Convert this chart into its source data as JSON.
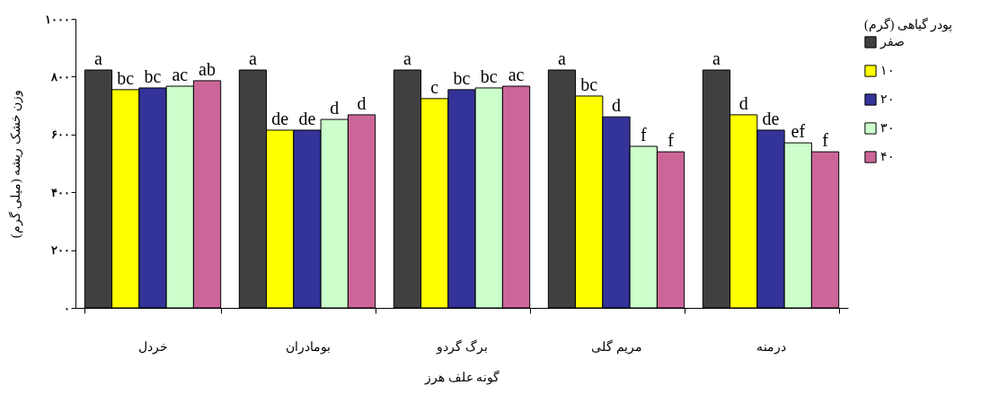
{
  "chart_data": {
    "type": "bar",
    "xlabel": "گونه علف هرز",
    "ylabel": "وزن خشک ریشه (میلی گرم)",
    "legend_title": "پودر گیاهی (گرم)",
    "legend": "right",
    "categories": [
      "خردل",
      "بومادران",
      "برگ گردو",
      "مریم گلی",
      "درمنه"
    ],
    "ylim": [
      0,
      1000
    ],
    "yticks": [
      {
        "value": 0,
        "label": "۰"
      },
      {
        "value": 200,
        "label": "۲۰۰"
      },
      {
        "value": 400,
        "label": "۴۰۰"
      },
      {
        "value": 600,
        "label": "۶۰۰"
      },
      {
        "value": 800,
        "label": "۸۰۰"
      },
      {
        "value": 1000,
        "label": "۱۰۰۰"
      }
    ],
    "series": [
      {
        "name": "صفر",
        "color": "#404040",
        "values": [
          823,
          823,
          823,
          823,
          823
        ],
        "value_labels": [
          "a",
          "a",
          "a",
          "a",
          "a"
        ]
      },
      {
        "name": "۱۰",
        "color": "#ffff00",
        "values": [
          755,
          615,
          724,
          733,
          668
        ],
        "value_labels": [
          "bc",
          "de",
          "c",
          "bc",
          "d"
        ]
      },
      {
        "name": "۲۰",
        "color": "#333399",
        "values": [
          761,
          615,
          755,
          661,
          615
        ],
        "value_labels": [
          "bc",
          "de",
          "bc",
          "d",
          "de"
        ]
      },
      {
        "name": "۳۰",
        "color": "#ccffcc",
        "values": [
          767,
          652,
          761,
          559,
          571
        ],
        "value_labels": [
          "ac",
          "d",
          "bc",
          "f",
          "ef"
        ]
      },
      {
        "name": "۴۰",
        "color": "#cc6699",
        "values": [
          786,
          668,
          767,
          540,
          540
        ],
        "value_labels": [
          "ab",
          "d",
          "ac",
          "f",
          "f"
        ]
      }
    ]
  }
}
